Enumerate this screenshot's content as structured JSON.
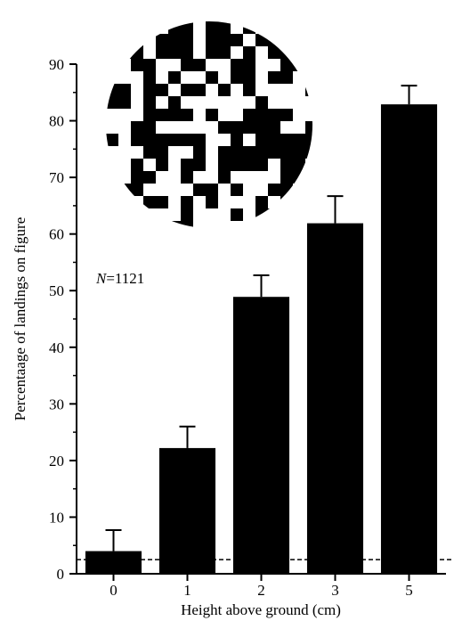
{
  "chart_data": {
    "type": "bar",
    "categories": [
      "0",
      "1",
      "2",
      "3",
      "5"
    ],
    "values": [
      4,
      22.2,
      48.9,
      61.9,
      82.9
    ],
    "errors": [
      3.7,
      3.8,
      3.8,
      4.8,
      3.3
    ],
    "color": "#000000",
    "ylim": [
      0,
      90
    ],
    "yticks": [
      0,
      10,
      20,
      30,
      40,
      50,
      60,
      70,
      80,
      90
    ],
    "yminor_ticks": [
      5,
      15,
      25,
      35,
      45,
      55,
      65,
      75,
      85
    ],
    "reference_line": 2.5,
    "xlabel": "Height above ground (cm)",
    "ylabel": "Percentaage of landings on figure",
    "annotation": [
      "N",
      "=1121"
    ]
  }
}
